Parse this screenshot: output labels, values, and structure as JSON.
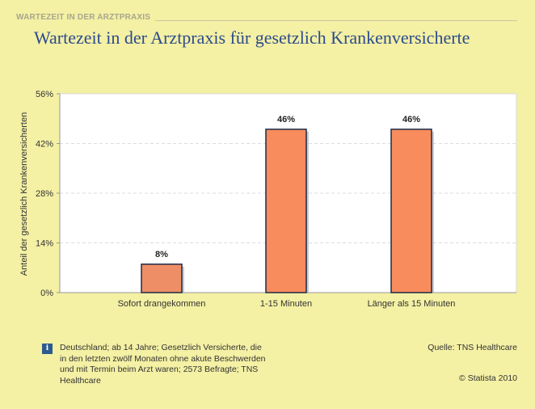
{
  "header": {
    "section_label": "WARTEZEIT IN DER ARZTPRAXIS"
  },
  "chart_data": {
    "type": "bar",
    "title": "Wartezeit in der Arztpraxis für gesetzlich Krankenversicherte",
    "categories": [
      "Sofort drangekommen",
      "1-15 Minuten",
      "Länger als 15 Minuten"
    ],
    "values": [
      8,
      46,
      46
    ],
    "value_labels": [
      "8%",
      "46%",
      "46%"
    ],
    "ylabel": "Anteil der gesetzlich Krankenversicherten",
    "xlabel": "",
    "ylim": [
      0,
      56
    ],
    "yticks": [
      0,
      14,
      28,
      42,
      56
    ],
    "ytick_labels": [
      "0%",
      "14%",
      "28%",
      "42%",
      "56%"
    ],
    "grid": true,
    "colors": {
      "bar_fill": "#f98c5c",
      "bar_border": "#1b2a4a",
      "bar_fill_small": "#ee8e66"
    }
  },
  "footer": {
    "info_icon": "info-icon",
    "note": "Deutschland; ab 14 Jahre; Gesetzlich Versicherte, die in den letzten zwölf Monaten ohne akute Beschwerden und mit Termin beim Arzt waren; 2573 Befragte; TNS Healthcare",
    "source": "Quelle: TNS Healthcare",
    "copyright": "© Statista 2010"
  }
}
